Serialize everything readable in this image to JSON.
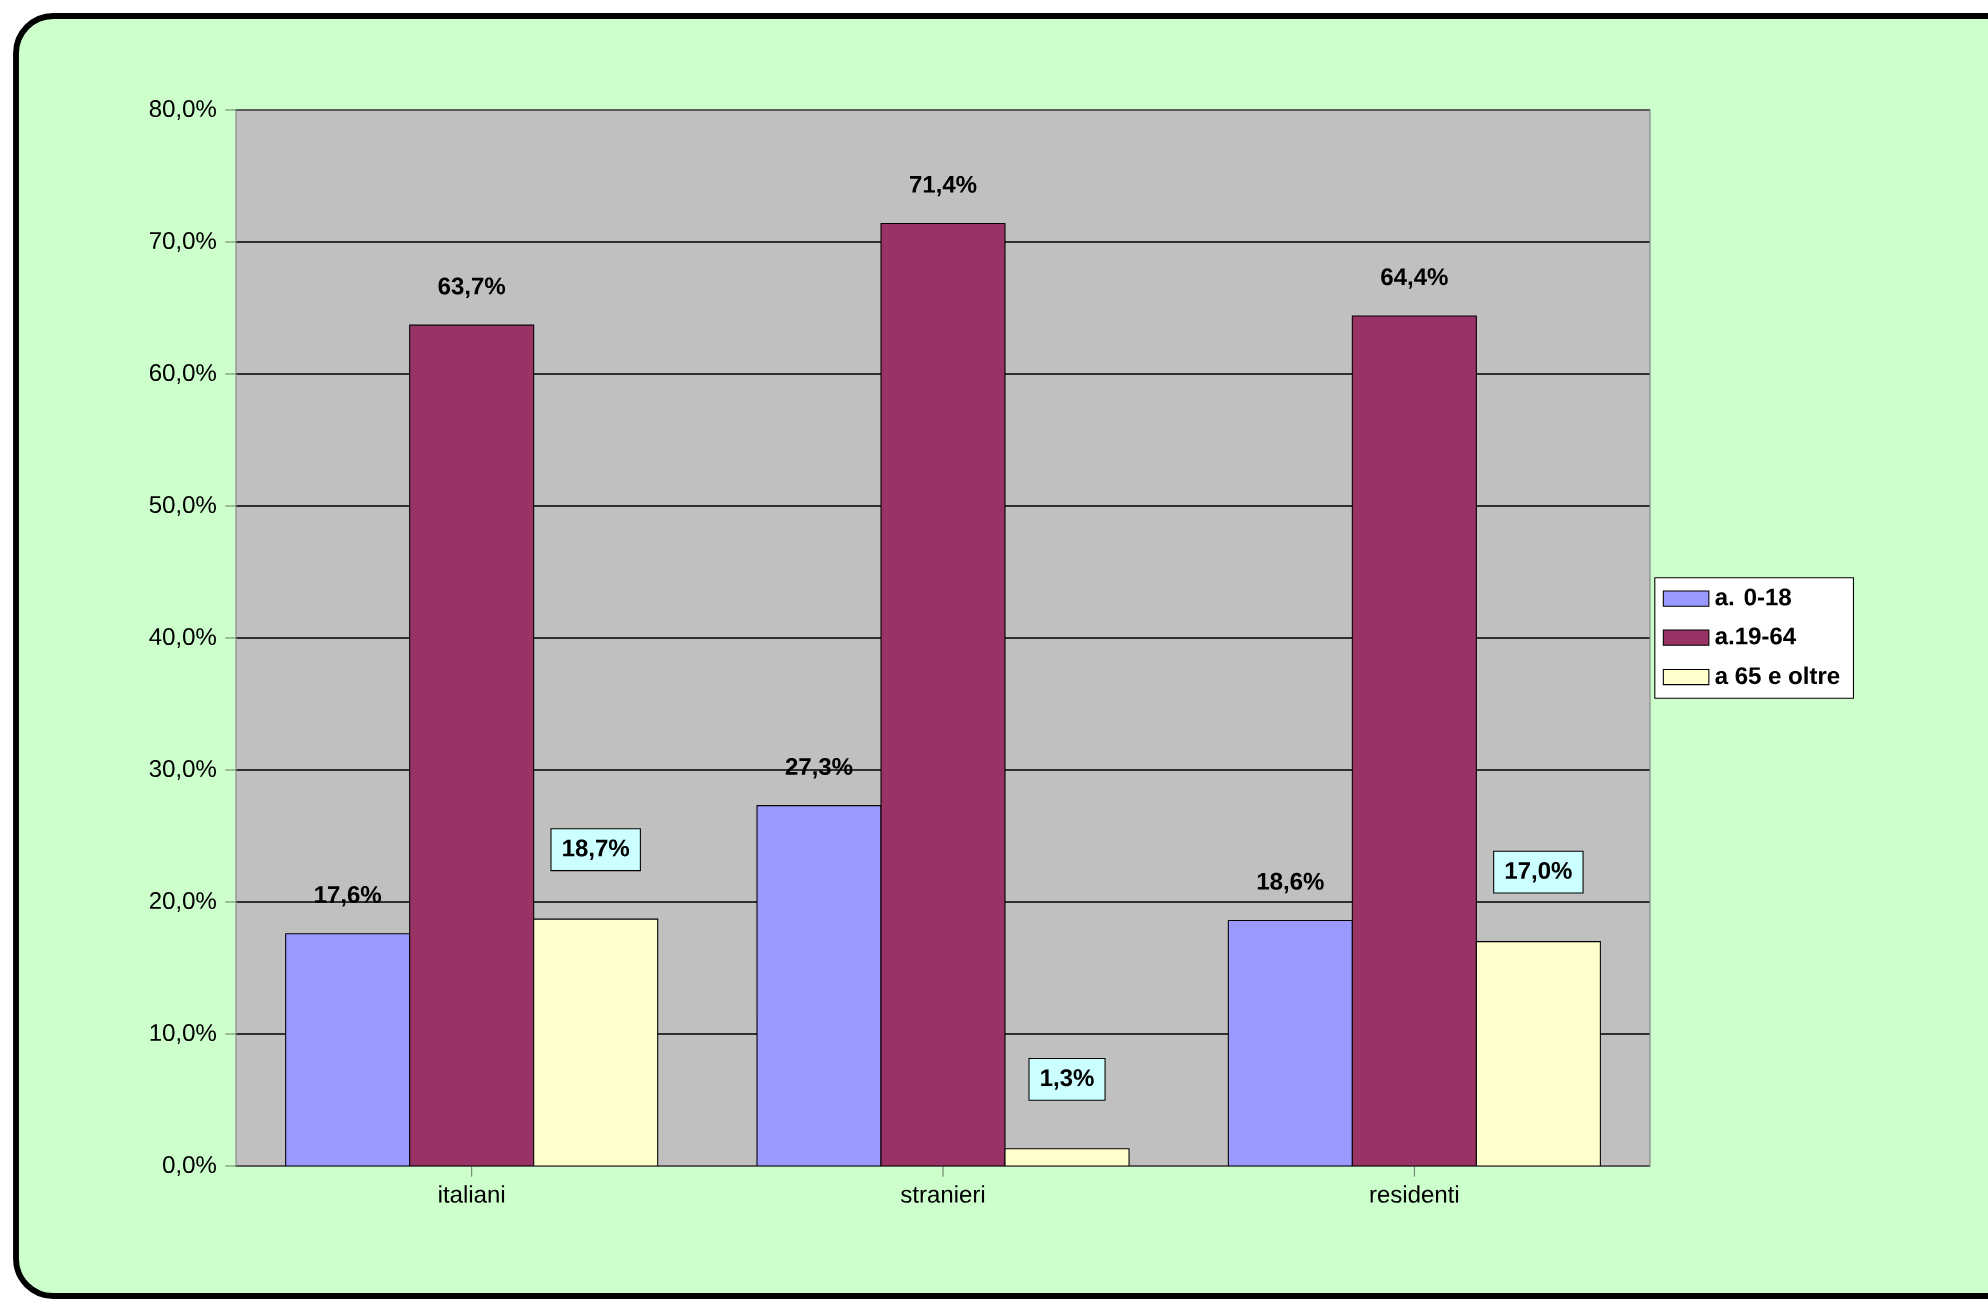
{
  "chart_data": {
    "type": "bar",
    "categories": [
      "italiani",
      "stranieri",
      "residenti"
    ],
    "series": [
      {
        "name": "a. 0-18",
        "color": "#9999ff",
        "values": [
          17.6,
          27.3,
          18.6
        ],
        "value_labels": [
          "17,6%",
          "27,3%",
          "18,6%"
        ]
      },
      {
        "name": "a.19-64",
        "color": "#993366",
        "values": [
          63.7,
          71.4,
          64.4
        ],
        "value_labels": [
          "63,7%",
          "71,4%",
          "64,4%"
        ]
      },
      {
        "name": "a 65 e oltre",
        "color": "#ffffcc",
        "values": [
          18.7,
          1.3,
          17.0
        ],
        "value_labels": [
          "18,7%",
          "1,3%",
          "17,0%"
        ]
      }
    ],
    "ylim": [
      0,
      80
    ],
    "yticks": [
      {
        "value": 0,
        "label": "0,0%"
      },
      {
        "value": 10,
        "label": "10,0%"
      },
      {
        "value": 20,
        "label": "20,0%"
      },
      {
        "value": 30,
        "label": "30,0%"
      },
      {
        "value": 40,
        "label": "40,0%"
      },
      {
        "value": 50,
        "label": "50,0%"
      },
      {
        "value": 60,
        "label": "60,0%"
      },
      {
        "value": 70,
        "label": "70,0%"
      },
      {
        "value": 80,
        "label": "80,0%"
      }
    ],
    "grid": "y",
    "legend": "right"
  }
}
